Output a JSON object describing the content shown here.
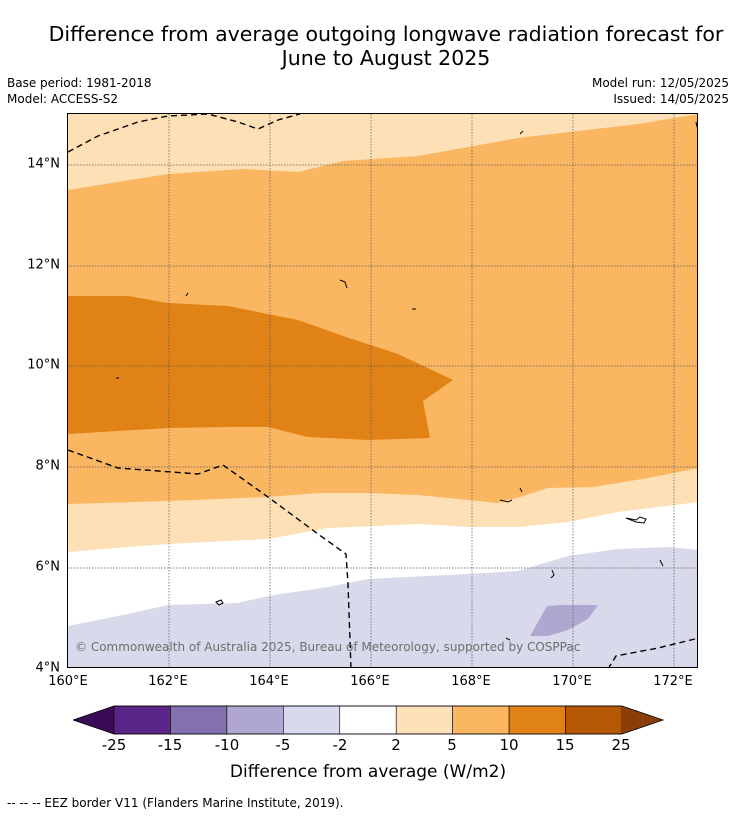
{
  "title": {
    "line1": "Difference from average outgoing longwave radiation forecast for",
    "line2": "June to August 2025"
  },
  "meta": {
    "base_period": "Base period: 1981-2018",
    "model": "Model: ACCESS-S2",
    "model_run": "Model run: 12/05/2025",
    "issued": "Issued: 14/05/2025"
  },
  "map": {
    "copyright": "© Commonwealth of Australia 2025, Bureau of Meteorology, supported by COSPPac",
    "lon_range": [
      160,
      172.5
    ],
    "lat_range": [
      4,
      15
    ],
    "y_ticks": [
      "4°N",
      "6°N",
      "8°N",
      "10°N",
      "12°N",
      "14°N"
    ],
    "x_ticks": [
      "160°E",
      "162°E",
      "164°E",
      "166°E",
      "168°E",
      "170°E",
      "172°E"
    ],
    "grid": true,
    "contour_bands": [
      {
        "range": "5 to 10",
        "color": "#fbb661"
      },
      {
        "range": "2 to 5",
        "color": "#fde0b5"
      },
      {
        "range": "10 to 15",
        "color": "#e08216"
      },
      {
        "range": "-2 to 2",
        "color": "#ffffff"
      },
      {
        "range": "-5 to -2",
        "color": "#d8d9ea"
      },
      {
        "range": "-10 to -5",
        "color": "#b0a7d1"
      }
    ],
    "eez_border_color": "#000000"
  },
  "colorbar": {
    "ticks": [
      "-25",
      "-15",
      "-10",
      "-5",
      "-2",
      "2",
      "5",
      "10",
      "15",
      "25"
    ],
    "colors": [
      "#592588",
      "#8470ae",
      "#b0a7d1",
      "#d8d9ea",
      "#ffffff",
      "#fde0b5",
      "#fbb661",
      "#e08216",
      "#b45806"
    ],
    "under_color": "#3b0b55",
    "over_color": "#8a3f0a",
    "label": "Difference from average (W/m2)"
  },
  "footer": "--  --  -- EEZ border V11 (Flanders Marine Institute, 2019)."
}
